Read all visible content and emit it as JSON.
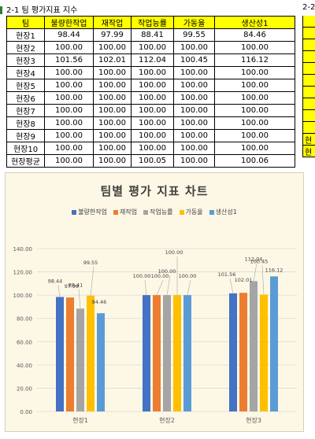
{
  "sheet": {
    "title": "2-1 팀 평가지표 지수",
    "title2": "2-2"
  },
  "table": {
    "headers": [
      "팀",
      "불량한작업",
      "재작업",
      "작업능률",
      "가동율",
      "생산성1"
    ],
    "rows": [
      [
        "현장1",
        "98.44",
        "97.99",
        "88.41",
        "99.55",
        "84.46"
      ],
      [
        "현장2",
        "100.00",
        "100.00",
        "100.00",
        "100.00",
        "100.00"
      ],
      [
        "현장3",
        "101.56",
        "102.01",
        "112.04",
        "100.45",
        "116.12"
      ],
      [
        "현장4",
        "100.00",
        "100.00",
        "100.00",
        "100.00",
        "100.00"
      ],
      [
        "현장5",
        "100.00",
        "100.00",
        "100.00",
        "100.00",
        "100.00"
      ],
      [
        "현장6",
        "100.00",
        "100.00",
        "100.00",
        "100.00",
        "100.00"
      ],
      [
        "현장7",
        "100.00",
        "100.00",
        "100.00",
        "100.00",
        "100.00"
      ],
      [
        "현장8",
        "100.00",
        "100.00",
        "100.00",
        "100.00",
        "100.00"
      ],
      [
        "현장9",
        "100.00",
        "100.00",
        "100.00",
        "100.00",
        "100.00"
      ],
      [
        "현장10",
        "100.00",
        "100.00",
        "100.00",
        "100.00",
        "100.00"
      ],
      [
        "현장평균",
        "100.00",
        "100.00",
        "100.05",
        "100.00",
        "100.06"
      ]
    ],
    "right_strip": [
      "",
      "",
      "",
      "",
      "",
      "",
      "",
      "",
      "",
      "",
      "현",
      "현"
    ]
  },
  "chart_data": {
    "type": "bar",
    "title": "팀별 평가 지표 차트",
    "categories": [
      "현장1",
      "현장2",
      "현장3"
    ],
    "series": [
      {
        "name": "불량한작업",
        "color": "#4472c4",
        "values": [
          98.44,
          100.0,
          101.56
        ]
      },
      {
        "name": "재작업",
        "color": "#ed7d31",
        "values": [
          97.99,
          100.0,
          102.01
        ]
      },
      {
        "name": "작업능률",
        "color": "#a5a5a5",
        "values": [
          88.41,
          100.0,
          112.04
        ]
      },
      {
        "name": "가동율",
        "color": "#ffc000",
        "values": [
          99.55,
          100.0,
          100.45
        ]
      },
      {
        "name": "생산성1",
        "color": "#5b9bd5",
        "values": [
          84.46,
          100.0,
          116.12
        ]
      }
    ],
    "ylim": [
      0,
      140
    ],
    "yticks": [
      "0.00",
      "20.00",
      "40.00",
      "60.00",
      "80.00",
      "100.00",
      "120.00",
      "140.00"
    ],
    "labels": [
      [
        "98.44",
        "97.99",
        "88.41",
        "99.55",
        "84.46"
      ],
      [
        "100.00",
        "100.00",
        "100.00",
        "100.00",
        "100.00"
      ],
      [
        "101.56",
        "102.01",
        "112.04",
        "100.45",
        "116.12"
      ]
    ],
    "legend_position": "top",
    "grid": true
  }
}
